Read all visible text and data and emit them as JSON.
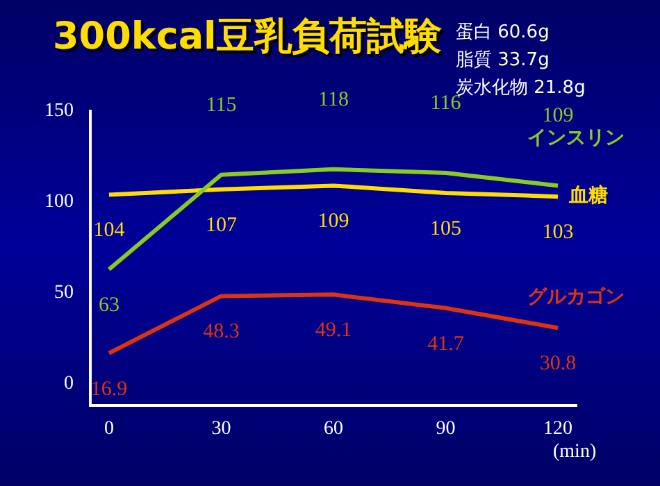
{
  "chart_data": {
    "type": "line",
    "title": "300kcal豆乳負荷試験",
    "annotations": [
      "蛋白 60.6g",
      "脂質 33.7g",
      "炭水化物 21.8g"
    ],
    "xlabel": "(min)",
    "x": [
      0,
      30,
      60,
      90,
      120
    ],
    "xlim": [
      -5,
      125
    ],
    "xticks": [
      0,
      30,
      60,
      90,
      120
    ],
    "ylim": [
      -12,
      150
    ],
    "yticks": [
      0,
      50,
      100,
      150
    ],
    "grid": false,
    "legend": false,
    "marker": "none",
    "line_style": "solid",
    "data_labels": true,
    "series": [
      {
        "name": "インスリン",
        "color": "#88cc22",
        "values": [
          63,
          115,
          118,
          116,
          109
        ]
      },
      {
        "name": "血糖",
        "color": "#ffdd00",
        "values": [
          104,
          107,
          109,
          105,
          103
        ]
      },
      {
        "name": "グルカゴン",
        "color": "#dd3311",
        "values": [
          16.9,
          48.3,
          49.1,
          41.7,
          30.8
        ]
      }
    ]
  }
}
